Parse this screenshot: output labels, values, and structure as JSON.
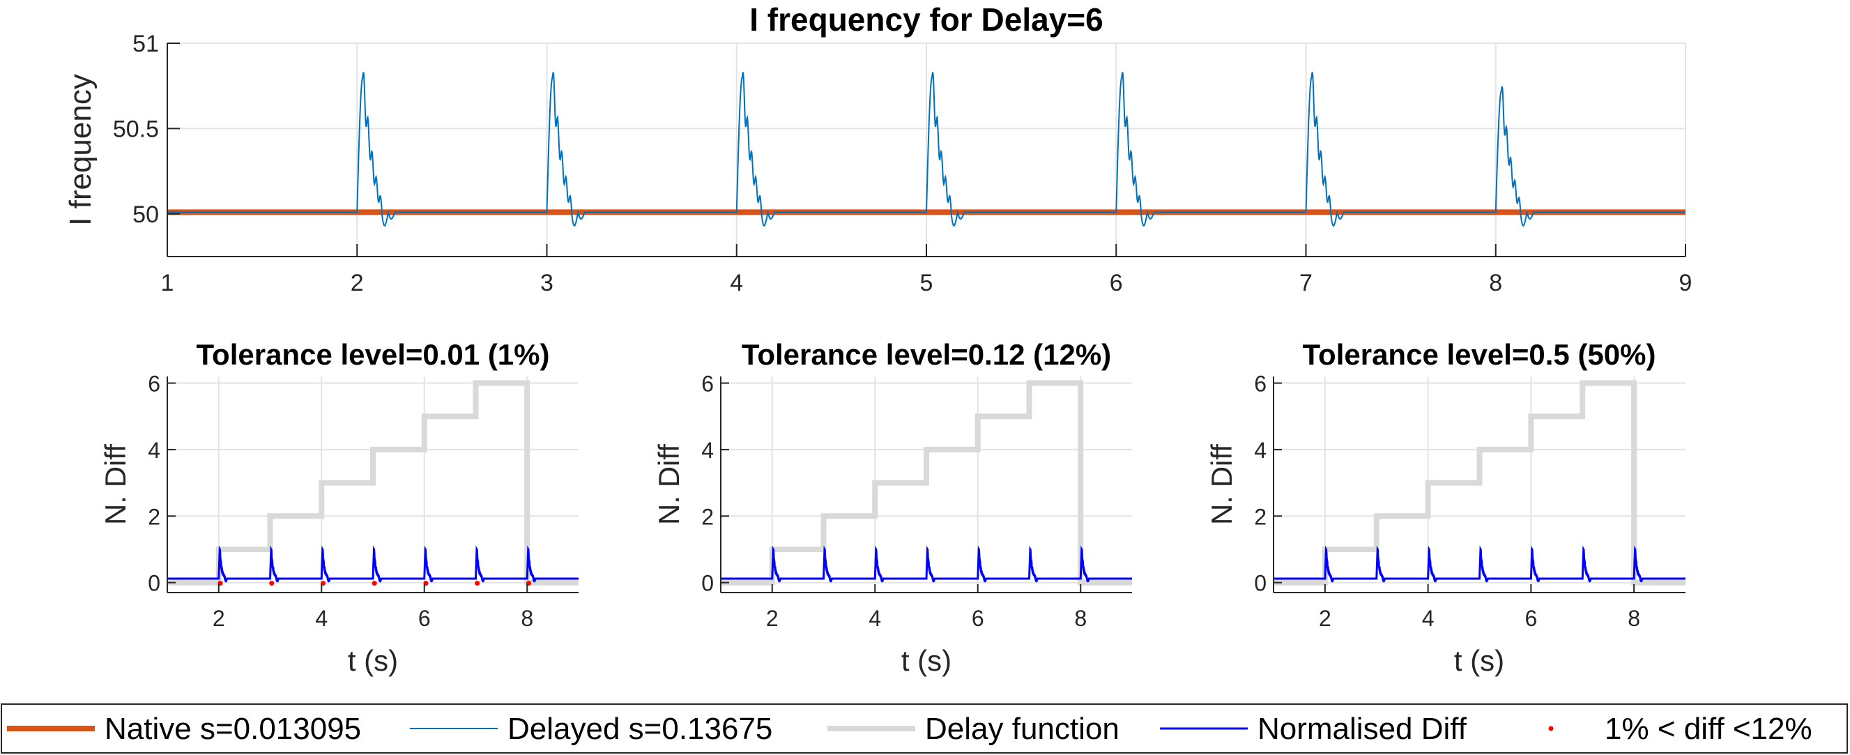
{
  "chart_data": [
    {
      "type": "line",
      "title": "I frequency for Delay=6",
      "xlabel": "",
      "ylabel": "I frequency",
      "xlim": [
        1,
        9
      ],
      "ylim": [
        49.75,
        51
      ],
      "xticks": [
        "1",
        "2",
        "3",
        "4",
        "5",
        "6",
        "7",
        "8",
        "9"
      ],
      "yticks": [
        "50",
        "50.5",
        "51"
      ],
      "grid": true,
      "series": [
        {
          "name": "Native s=0.013095",
          "color": "#D95319",
          "constant": 50.01
        },
        {
          "name": "Delayed s=0.13675",
          "color": "#0072BD",
          "event_times": [
            2,
            3,
            4,
            5,
            6,
            7,
            8
          ],
          "peaks": [
            50.8,
            50.8,
            50.8,
            50.8,
            50.8,
            50.8,
            50.72
          ],
          "baseline": 50.01,
          "undershoot": 49.9
        }
      ]
    },
    {
      "type": "line",
      "title": "Tolerance level=0.01 (1%)",
      "xlabel": "t (s)",
      "ylabel": "N. Diff",
      "xlim": [
        1,
        9
      ],
      "ylim": [
        -0.3,
        6.2
      ],
      "xticks": [
        "2",
        "4",
        "6",
        "8"
      ],
      "yticks": [
        "0",
        "2",
        "4",
        "6"
      ],
      "grid": true,
      "delay_function": {
        "steps": [
          [
            1,
            0
          ],
          [
            2,
            1
          ],
          [
            3,
            2
          ],
          [
            4,
            3
          ],
          [
            5,
            4
          ],
          [
            6,
            5
          ],
          [
            7,
            6
          ],
          [
            8,
            0
          ],
          [
            9,
            0
          ]
        ]
      },
      "normalised_diff": {
        "baseline": 0.12,
        "event_times": [
          2,
          3,
          4,
          5,
          6,
          7,
          8
        ],
        "peak": 1.0
      },
      "points_1_to_12": [
        2,
        3,
        4,
        5,
        6,
        7,
        8
      ]
    },
    {
      "type": "line",
      "title": "Tolerance level=0.12 (12%)",
      "xlabel": "t (s)",
      "ylabel": "N. Diff",
      "xlim": [
        1,
        9
      ],
      "ylim": [
        -0.3,
        6.2
      ],
      "xticks": [
        "2",
        "4",
        "6",
        "8"
      ],
      "yticks": [
        "0",
        "2",
        "4",
        "6"
      ],
      "grid": true,
      "delay_function": {
        "steps": [
          [
            1,
            0
          ],
          [
            2,
            1
          ],
          [
            3,
            2
          ],
          [
            4,
            3
          ],
          [
            5,
            4
          ],
          [
            6,
            5
          ],
          [
            7,
            6
          ],
          [
            8,
            0
          ],
          [
            9,
            0
          ]
        ]
      },
      "normalised_diff": {
        "baseline": 0.12,
        "event_times": [
          2,
          3,
          4,
          5,
          6,
          7,
          8
        ],
        "peak": 1.0
      },
      "points_1_to_12": []
    },
    {
      "type": "line",
      "title": "Tolerance level=0.5 (50%)",
      "xlabel": "t (s)",
      "ylabel": "N. Diff",
      "xlim": [
        1,
        9
      ],
      "ylim": [
        -0.3,
        6.2
      ],
      "xticks": [
        "2",
        "4",
        "6",
        "8"
      ],
      "yticks": [
        "0",
        "2",
        "4",
        "6"
      ],
      "grid": true,
      "delay_function": {
        "steps": [
          [
            1,
            0
          ],
          [
            2,
            1
          ],
          [
            3,
            2
          ],
          [
            4,
            3
          ],
          [
            5,
            4
          ],
          [
            6,
            5
          ],
          [
            7,
            6
          ],
          [
            8,
            0
          ],
          [
            9,
            0
          ]
        ]
      },
      "normalised_diff": {
        "baseline": 0.12,
        "event_times": [
          2,
          3,
          4,
          5,
          6,
          7,
          8
        ],
        "peak": 1.0
      },
      "points_1_to_12": []
    }
  ],
  "legend": {
    "placement": "bottom",
    "entries": [
      {
        "label": "Native s=0.013095",
        "color": "#D95319",
        "style": "thick-line"
      },
      {
        "label": "Delayed s=0.13675",
        "color": "#0072BD",
        "style": "thin-line"
      },
      {
        "label": "Delay function",
        "color": "#D9D9D9",
        "style": "thick-line"
      },
      {
        "label": "Normalised Diff",
        "color": "#0000FF",
        "style": "line"
      },
      {
        "label": "1% < diff <12%",
        "color": "#FF0000",
        "style": "dot"
      }
    ]
  }
}
